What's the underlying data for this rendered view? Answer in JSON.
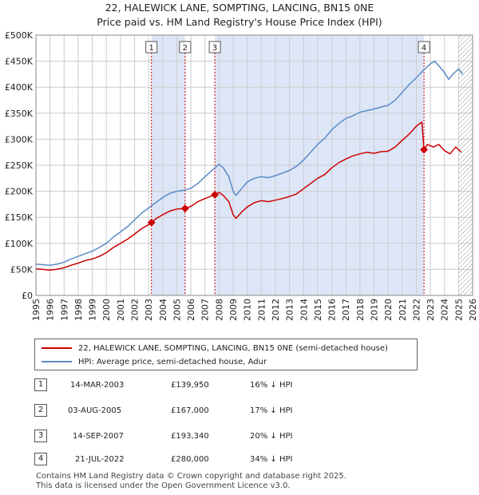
{
  "header": {
    "title": "22, HALEWICK LANE, SOMPTING, LANCING, BN15 0NE",
    "subtitle": "Price paid vs. HM Land Registry's House Price Index (HPI)"
  },
  "colors": {
    "property": "#cc0000",
    "hpi": "#5b8ac8",
    "shade": "#dde6f7",
    "grid": "#cccccc",
    "hatch": "#999999"
  },
  "chart_data": {
    "type": "line",
    "title": "22, HALEWICK LANE, SOMPTING, LANCING, BN15 0NE",
    "xlim": [
      1995,
      2026
    ],
    "ylim": [
      0,
      500000
    ],
    "x_ticks": [
      "1995",
      "1996",
      "1997",
      "1998",
      "1999",
      "2000",
      "2001",
      "2002",
      "2003",
      "2004",
      "2005",
      "2006",
      "2007",
      "2008",
      "2009",
      "2010",
      "2011",
      "2012",
      "2013",
      "2014",
      "2015",
      "2016",
      "2017",
      "2018",
      "2019",
      "2020",
      "2021",
      "2022",
      "2023",
      "2024",
      "2025",
      "2026"
    ],
    "y_ticks": [
      {
        "value": 0,
        "label": "£0"
      },
      {
        "value": 50000,
        "label": "£50K"
      },
      {
        "value": 100000,
        "label": "£100K"
      },
      {
        "value": 150000,
        "label": "£150K"
      },
      {
        "value": 200000,
        "label": "£200K"
      },
      {
        "value": 250000,
        "label": "£250K"
      },
      {
        "value": 300000,
        "label": "£300K"
      },
      {
        "value": 350000,
        "label": "£350K"
      },
      {
        "value": 400000,
        "label": "£400K"
      },
      {
        "value": 450000,
        "label": "£450K"
      },
      {
        "value": 500000,
        "label": "£500K"
      }
    ],
    "grid": true,
    "shaded_ranges": [
      [
        2003.2,
        2005.59
      ],
      [
        2007.7,
        2022.55
      ]
    ],
    "future_hatch_from": 2025.0,
    "series": [
      {
        "name": "22, HALEWICK LANE, SOMPTING, LANCING, BN15 0NE (semi-detached house)",
        "color": "#cc0000",
        "points": [
          [
            1995.0,
            51000
          ],
          [
            1995.5,
            50000
          ],
          [
            1996.0,
            48500
          ],
          [
            1996.5,
            50500
          ],
          [
            1997.0,
            53000
          ],
          [
            1997.5,
            58000
          ],
          [
            1998.0,
            62000
          ],
          [
            1998.5,
            67000
          ],
          [
            1999.0,
            70000
          ],
          [
            1999.5,
            75000
          ],
          [
            2000.0,
            82000
          ],
          [
            2000.5,
            92000
          ],
          [
            2001.0,
            100000
          ],
          [
            2001.5,
            108000
          ],
          [
            2002.0,
            118000
          ],
          [
            2002.5,
            128000
          ],
          [
            2003.0,
            136000
          ],
          [
            2003.2,
            139950
          ],
          [
            2003.5,
            147000
          ],
          [
            2004.0,
            155000
          ],
          [
            2004.5,
            162000
          ],
          [
            2005.0,
            166000
          ],
          [
            2005.59,
            167000
          ],
          [
            2006.0,
            171000
          ],
          [
            2006.5,
            180000
          ],
          [
            2007.0,
            186000
          ],
          [
            2007.7,
            193340
          ],
          [
            2008.0,
            198000
          ],
          [
            2008.3,
            192000
          ],
          [
            2008.7,
            180000
          ],
          [
            2009.0,
            155000
          ],
          [
            2009.2,
            148000
          ],
          [
            2009.6,
            160000
          ],
          [
            2010.0,
            170000
          ],
          [
            2010.5,
            178000
          ],
          [
            2011.0,
            182000
          ],
          [
            2011.5,
            180000
          ],
          [
            2012.0,
            183000
          ],
          [
            2012.5,
            186000
          ],
          [
            2013.0,
            190000
          ],
          [
            2013.5,
            195000
          ],
          [
            2014.0,
            205000
          ],
          [
            2014.5,
            215000
          ],
          [
            2015.0,
            225000
          ],
          [
            2015.5,
            232000
          ],
          [
            2016.0,
            245000
          ],
          [
            2016.5,
            255000
          ],
          [
            2017.0,
            262000
          ],
          [
            2017.5,
            268000
          ],
          [
            2018.0,
            272000
          ],
          [
            2018.5,
            275000
          ],
          [
            2019.0,
            273000
          ],
          [
            2019.5,
            276000
          ],
          [
            2020.0,
            277000
          ],
          [
            2020.5,
            285000
          ],
          [
            2021.0,
            298000
          ],
          [
            2021.5,
            310000
          ],
          [
            2022.0,
            325000
          ],
          [
            2022.4,
            333000
          ],
          [
            2022.55,
            280000
          ],
          [
            2022.8,
            290000
          ],
          [
            2023.2,
            285000
          ],
          [
            2023.6,
            290000
          ],
          [
            2024.0,
            278000
          ],
          [
            2024.4,
            272000
          ],
          [
            2024.8,
            285000
          ],
          [
            2025.2,
            275000
          ]
        ]
      },
      {
        "name": "HPI: Average price, semi-detached house, Adur",
        "color": "#5b8ac8",
        "points": [
          [
            1995.0,
            60000
          ],
          [
            1995.5,
            59000
          ],
          [
            1996.0,
            58000
          ],
          [
            1996.5,
            60000
          ],
          [
            1997.0,
            64000
          ],
          [
            1997.5,
            70000
          ],
          [
            1998.0,
            75000
          ],
          [
            1998.5,
            80000
          ],
          [
            1999.0,
            85000
          ],
          [
            1999.5,
            92000
          ],
          [
            2000.0,
            100000
          ],
          [
            2000.5,
            112000
          ],
          [
            2001.0,
            122000
          ],
          [
            2001.5,
            132000
          ],
          [
            2002.0,
            145000
          ],
          [
            2002.5,
            158000
          ],
          [
            2003.0,
            168000
          ],
          [
            2003.5,
            178000
          ],
          [
            2004.0,
            188000
          ],
          [
            2004.5,
            196000
          ],
          [
            2005.0,
            200000
          ],
          [
            2005.5,
            202000
          ],
          [
            2006.0,
            206000
          ],
          [
            2006.5,
            215000
          ],
          [
            2007.0,
            228000
          ],
          [
            2007.5,
            240000
          ],
          [
            2008.0,
            252000
          ],
          [
            2008.3,
            245000
          ],
          [
            2008.7,
            228000
          ],
          [
            2009.0,
            200000
          ],
          [
            2009.2,
            192000
          ],
          [
            2009.6,
            205000
          ],
          [
            2010.0,
            218000
          ],
          [
            2010.5,
            225000
          ],
          [
            2011.0,
            228000
          ],
          [
            2011.5,
            226000
          ],
          [
            2012.0,
            230000
          ],
          [
            2012.5,
            235000
          ],
          [
            2013.0,
            240000
          ],
          [
            2013.5,
            248000
          ],
          [
            2014.0,
            260000
          ],
          [
            2014.5,
            275000
          ],
          [
            2015.0,
            290000
          ],
          [
            2015.5,
            302000
          ],
          [
            2016.0,
            318000
          ],
          [
            2016.5,
            330000
          ],
          [
            2017.0,
            340000
          ],
          [
            2017.5,
            345000
          ],
          [
            2018.0,
            352000
          ],
          [
            2018.5,
            355000
          ],
          [
            2019.0,
            358000
          ],
          [
            2019.5,
            362000
          ],
          [
            2020.0,
            365000
          ],
          [
            2020.5,
            375000
          ],
          [
            2021.0,
            390000
          ],
          [
            2021.5,
            405000
          ],
          [
            2022.0,
            418000
          ],
          [
            2022.5,
            432000
          ],
          [
            2023.0,
            445000
          ],
          [
            2023.3,
            450000
          ],
          [
            2023.7,
            438000
          ],
          [
            2024.0,
            428000
          ],
          [
            2024.3,
            415000
          ],
          [
            2024.6,
            425000
          ],
          [
            2025.0,
            435000
          ],
          [
            2025.3,
            425000
          ]
        ]
      }
    ],
    "markers": [
      {
        "label": "1",
        "x": 2003.2,
        "y": 139950
      },
      {
        "label": "2",
        "x": 2005.59,
        "y": 167000
      },
      {
        "label": "3",
        "x": 2007.7,
        "y": 193340
      },
      {
        "label": "4",
        "x": 2022.55,
        "y": 280000
      }
    ]
  },
  "legend": {
    "property_label": "22, HALEWICK LANE, SOMPTING, LANCING, BN15 0NE (semi-detached house)",
    "hpi_label": "HPI: Average price, semi-detached house, Adur"
  },
  "transactions": [
    {
      "num": "1",
      "date": "14-MAR-2003",
      "price": "£139,950",
      "hpi": "16% ↓ HPI"
    },
    {
      "num": "2",
      "date": "03-AUG-2005",
      "price": "£167,000",
      "hpi": "17% ↓ HPI"
    },
    {
      "num": "3",
      "date": "14-SEP-2007",
      "price": "£193,340",
      "hpi": "20% ↓ HPI"
    },
    {
      "num": "4",
      "date": "21-JUL-2022",
      "price": "£280,000",
      "hpi": "34% ↓ HPI"
    }
  ],
  "footer": {
    "line1": "Contains HM Land Registry data © Crown copyright and database right 2025.",
    "line2": "This data is licensed under the Open Government Licence v3.0."
  }
}
